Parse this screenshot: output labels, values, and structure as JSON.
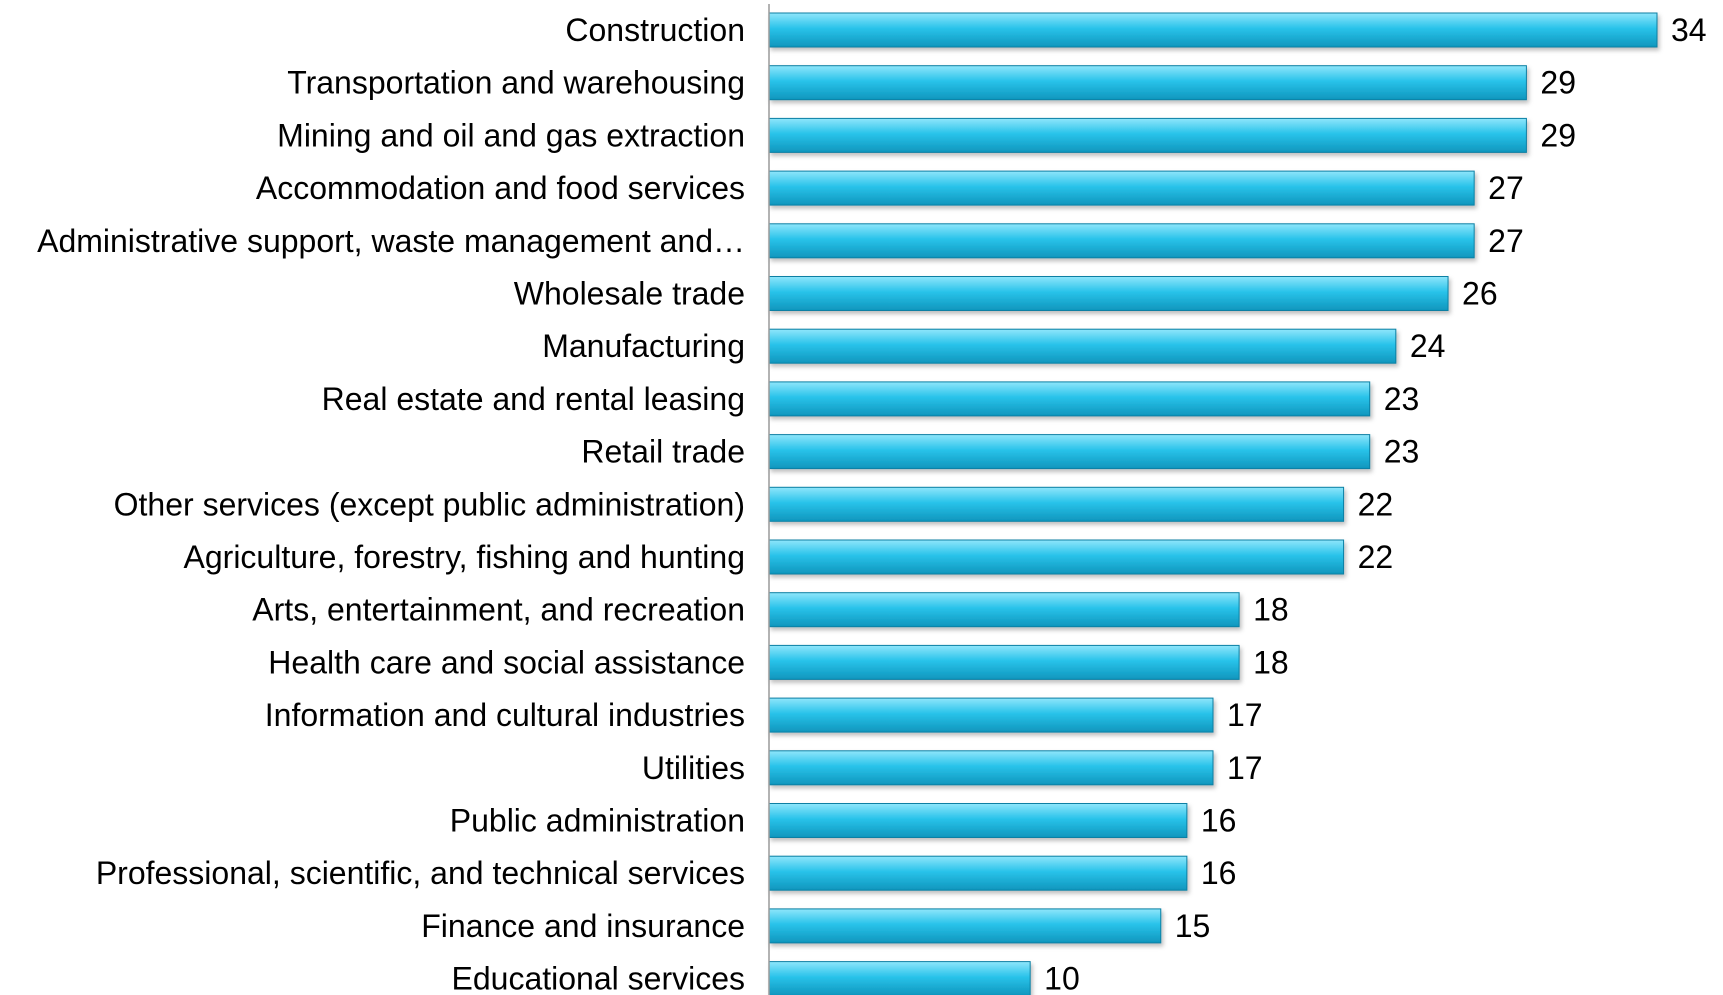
{
  "colors": {
    "bar_top": "#8fe6fb",
    "bar_mid": "#29c3ea",
    "bar_bottom": "#0f96bd",
    "bar_edge": "#0a7fa3",
    "axis": "#9a9a9a",
    "text": "#000000",
    "background": "#ffffff"
  },
  "chart_data": {
    "type": "bar",
    "orientation": "horizontal",
    "title": "",
    "xlabel": "",
    "ylabel": "",
    "xlim": [
      0,
      34
    ],
    "grid": false,
    "legend": "none",
    "data_labels": true,
    "categories": [
      "Construction",
      "Transportation and warehousing",
      "Mining and oil and gas extraction",
      "Accommodation and food services",
      "Administrative support, waste management and…",
      "Wholesale trade",
      "Manufacturing",
      "Real estate and rental leasing",
      "Retail trade",
      "Other services (except public administration)",
      "Agriculture, forestry, fishing and hunting",
      "Arts, entertainment, and recreation",
      "Health care and social assistance",
      "Information and cultural industries",
      "Utilities",
      "Public administration",
      "Professional, scientific, and technical services",
      "Finance and insurance",
      "Educational services"
    ],
    "values": [
      34,
      29,
      29,
      27,
      27,
      26,
      24,
      23,
      23,
      22,
      22,
      18,
      18,
      17,
      17,
      16,
      16,
      15,
      10
    ]
  }
}
